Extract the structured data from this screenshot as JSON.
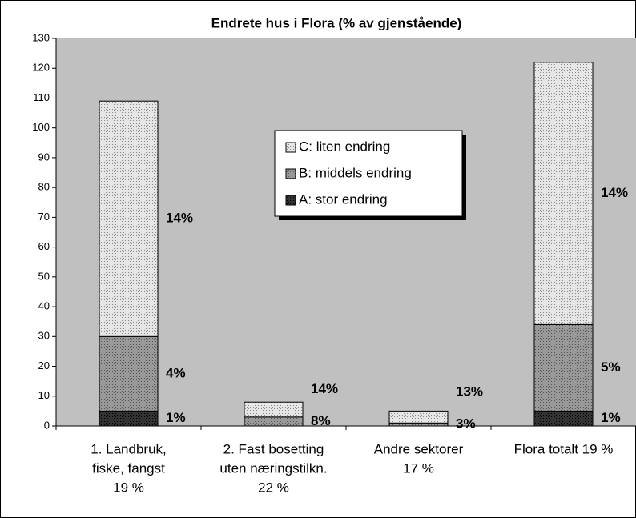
{
  "chart_data": {
    "type": "stacked_bar",
    "title": "Endrete hus i Flora (% av gjenstående)",
    "categories": [
      [
        "1. Landbruk,",
        "fiske, fangst",
        "19 %"
      ],
      [
        "2. Fast bosetting",
        "uten næringstilkn.",
        "22 %"
      ],
      [
        "Andre sektorer",
        "17 %"
      ],
      [
        "Flora totalt 19 %"
      ]
    ],
    "series": [
      {
        "name": "A: stor endring",
        "color": "#333333",
        "values": [
          5,
          0,
          0,
          5
        ],
        "value_labels": [
          "1%",
          null,
          null,
          "1%"
        ]
      },
      {
        "name": "B: middels endring",
        "color": "#999999",
        "values": [
          25,
          3,
          1,
          29
        ],
        "value_labels": [
          "4%",
          "8%",
          "3%",
          "5%"
        ]
      },
      {
        "name": "C: liten endring",
        "color": "#e6e6e6",
        "values": [
          79,
          5,
          4,
          88
        ],
        "value_labels": [
          "14%",
          "14%",
          "13%",
          "14%"
        ]
      }
    ],
    "ylim": [
      0,
      130
    ],
    "yticks": [
      0,
      10,
      20,
      30,
      40,
      50,
      60,
      70,
      80,
      90,
      100,
      110,
      120,
      130
    ],
    "legend": "center"
  }
}
